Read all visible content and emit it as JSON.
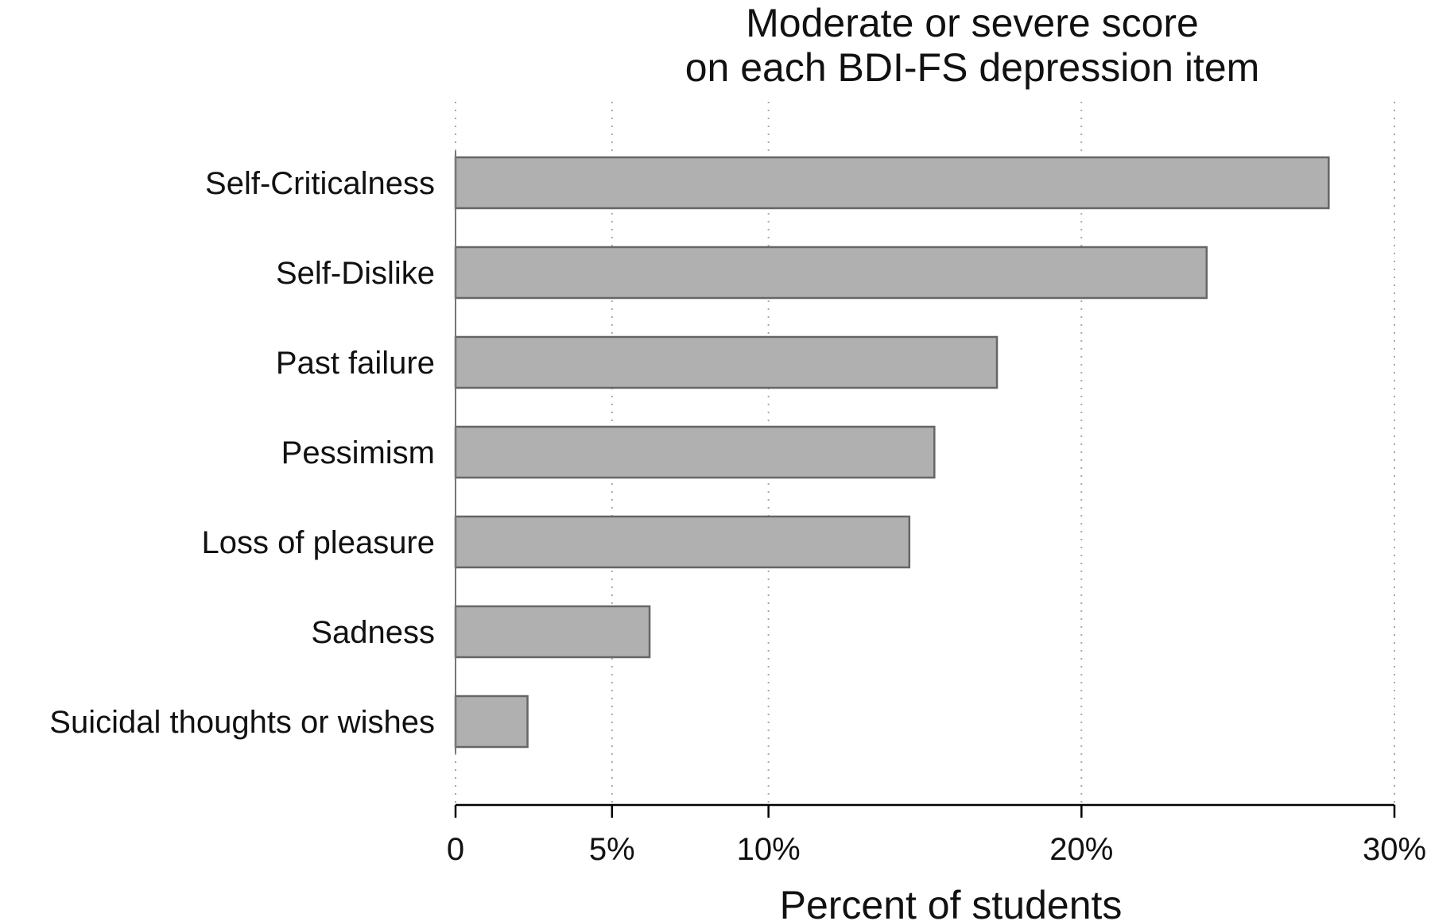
{
  "chart_data": {
    "type": "bar",
    "orientation": "horizontal",
    "title": [
      "Moderate or severe score",
      "on each BDI-FS depression item"
    ],
    "xlabel": "Percent of students",
    "ylabel": "",
    "categories": [
      "Self-Criticalness",
      "Self-Dislike",
      "Past failure",
      "Pessimism",
      "Loss of pleasure",
      "Sadness",
      "Suicidal thoughts or wishes"
    ],
    "values": [
      27.9,
      24.0,
      17.3,
      15.3,
      14.5,
      6.2,
      2.3
    ],
    "xlim": [
      0,
      30
    ],
    "xticks": [
      {
        "value": 0,
        "label": "0"
      },
      {
        "value": 5,
        "label": "5%"
      },
      {
        "value": 10,
        "label": "10%"
      },
      {
        "value": 20,
        "label": "20%"
      },
      {
        "value": 30,
        "label": "30%"
      }
    ],
    "grid": true,
    "legend": "none",
    "colors": {
      "bar_fill": "#b0b0b0",
      "bar_stroke": "#666666",
      "grid": "#a8a8a8"
    }
  }
}
